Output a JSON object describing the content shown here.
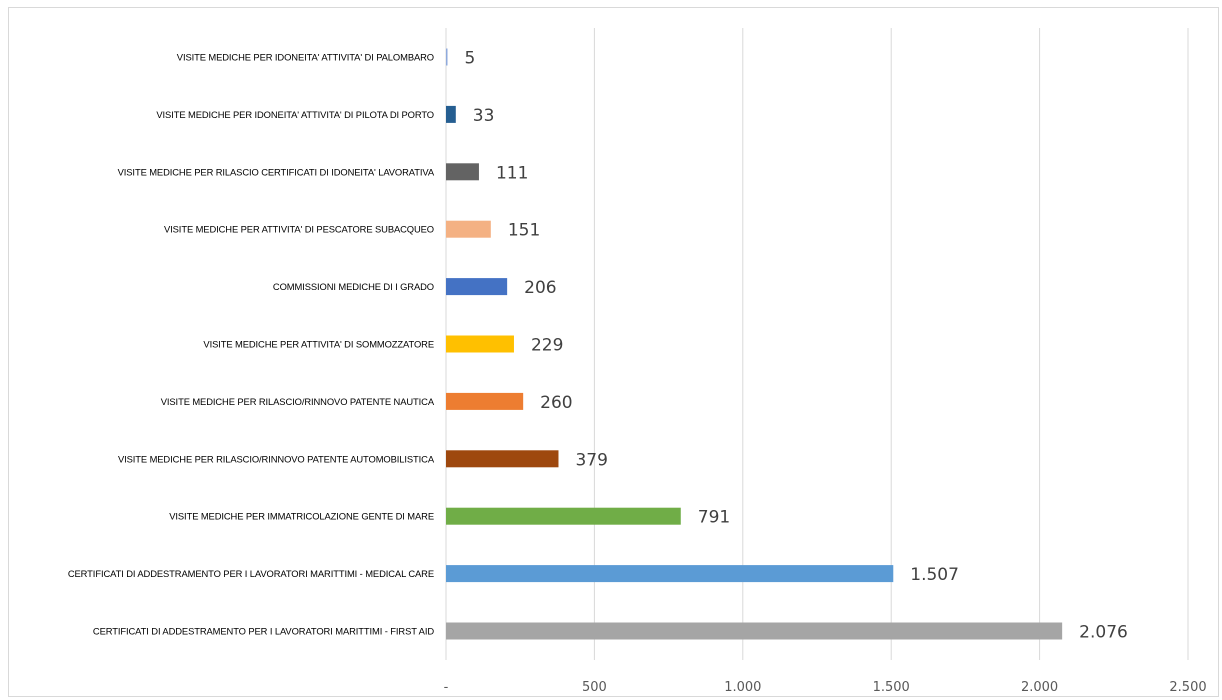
{
  "chart_data": {
    "type": "bar",
    "orientation": "horizontal",
    "title": "",
    "xlabel": "",
    "ylabel": "",
    "xlim": [
      0,
      2500
    ],
    "grid": true,
    "legend": "none",
    "x_ticks": [
      {
        "value": 0,
        "label": "-"
      },
      {
        "value": 500,
        "label": "500"
      },
      {
        "value": 1000,
        "label": "1.000"
      },
      {
        "value": 1500,
        "label": "1.500"
      },
      {
        "value": 2000,
        "label": "2.000"
      },
      {
        "value": 2500,
        "label": "2.500"
      }
    ],
    "bars": [
      {
        "category": "VISITE MEDICHE PER IDONEITA' ATTIVITA' DI PALOMBARO",
        "value": 5,
        "label": "5",
        "color": "#8faadc"
      },
      {
        "category": "VISITE MEDICHE PER  IDONEITA' ATTIVITA' DI PILOTA DI PORTO",
        "value": 33,
        "label": "33",
        "color": "#255e91"
      },
      {
        "category": "VISITE MEDICHE PER RILASCIO CERTIFICATI DI IDONEITA' LAVORATIVA",
        "value": 111,
        "label": "111",
        "color": "#636363"
      },
      {
        "category": "VISITE MEDICHE PER ATTIVITA' DI PESCATORE SUBACQUEO",
        "value": 151,
        "label": "151",
        "color": "#f4b183"
      },
      {
        "category": "COMMISSIONI MEDICHE DI I GRADO",
        "value": 206,
        "label": "206",
        "color": "#4472c4"
      },
      {
        "category": "VISITE MEDICHE PER ATTIVITA' DI SOMMOZZATORE",
        "value": 229,
        "label": "229",
        "color": "#ffc000"
      },
      {
        "category": "VISITE MEDICHE PER RILASCIO/RINNOVO PATENTE NAUTICA",
        "value": 260,
        "label": "260",
        "color": "#ed7d31"
      },
      {
        "category": "VISITE MEDICHE PER RILASCIO/RINNOVO PATENTE AUTOMOBILISTICA",
        "value": 379,
        "label": "379",
        "color": "#9e480e"
      },
      {
        "category": "VISITE MEDICHE PER IMMATRICOLAZIONE GENTE DI MARE",
        "value": 791,
        "label": "791",
        "color": "#70ad47"
      },
      {
        "category": "CERTIFICATI DI ADDESTRAMENTO PER I LAVORATORI MARITTIMI - MEDICAL CARE",
        "value": 1507,
        "label": "1.507",
        "color": "#5b9bd5"
      },
      {
        "category": "CERTIFICATI DI ADDESTRAMENTO PER I LAVORATORI MARITTIMI - FIRST AID",
        "value": 2076,
        "label": "2.076",
        "color": "#a5a5a5"
      }
    ],
    "gridline_color": "#d9d9d9"
  }
}
